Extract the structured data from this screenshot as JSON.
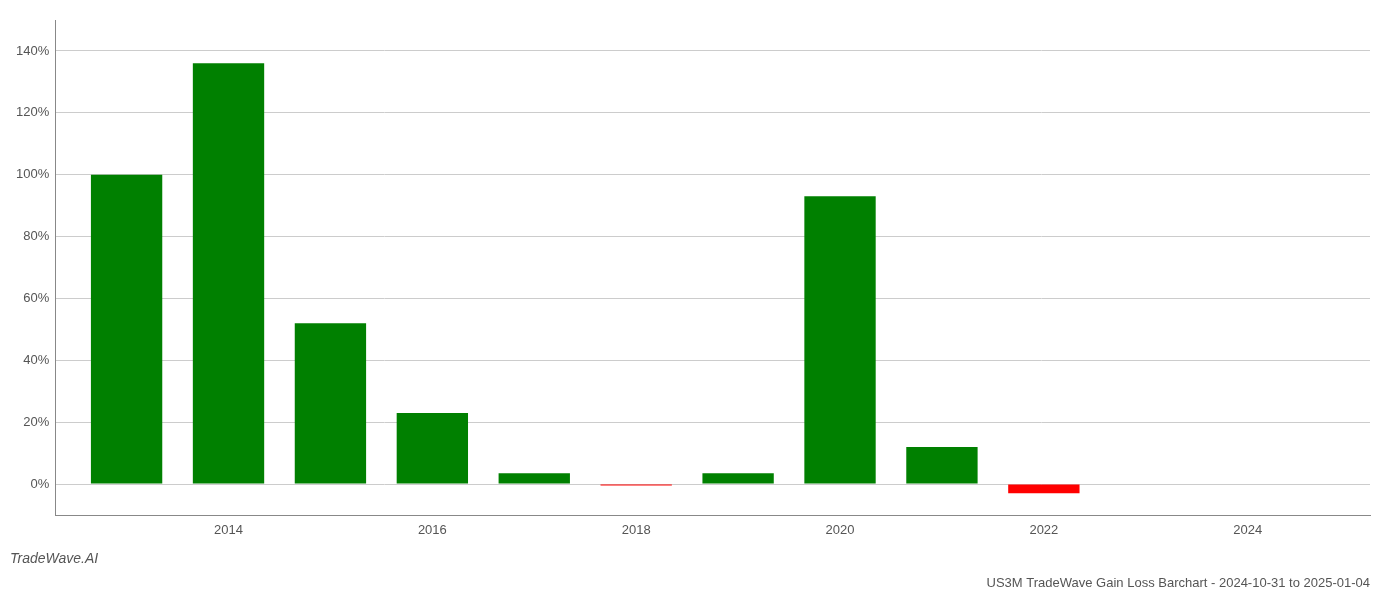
{
  "chart_data": {
    "type": "bar",
    "title": "US3M TradeWave Gain Loss Barchart - 2024-10-31 to 2025-01-04",
    "annotations": [
      "TradeWave.AI"
    ],
    "x": [
      2013,
      2014,
      2015,
      2016,
      2017,
      2018,
      2019,
      2020,
      2021,
      2022,
      2023
    ],
    "values": [
      100.0,
      136.0,
      52.0,
      23.0,
      3.5,
      -0.5,
      3.5,
      93.0,
      12.0,
      -3.0,
      0.0
    ],
    "colors": [
      "#008000",
      "#008000",
      "#008000",
      "#008000",
      "#008000",
      "#FF0000",
      "#008000",
      "#008000",
      "#008000",
      "#FF0000",
      "#008000"
    ],
    "xlim": [
      2012.3,
      2025.2
    ],
    "xticks": [
      2014,
      2016,
      2018,
      2020,
      2022,
      2024
    ],
    "ylim": [
      -10,
      150
    ],
    "yticks": [
      {
        "value": 0,
        "label": "0%"
      },
      {
        "value": 20,
        "label": "20%"
      },
      {
        "value": 40,
        "label": "40%"
      },
      {
        "value": 60,
        "label": "60%"
      },
      {
        "value": 80,
        "label": "80%"
      },
      {
        "value": 100,
        "label": "100%"
      },
      {
        "value": 120,
        "label": "120%"
      },
      {
        "value": 140,
        "label": "140%"
      }
    ],
    "grid": true
  }
}
